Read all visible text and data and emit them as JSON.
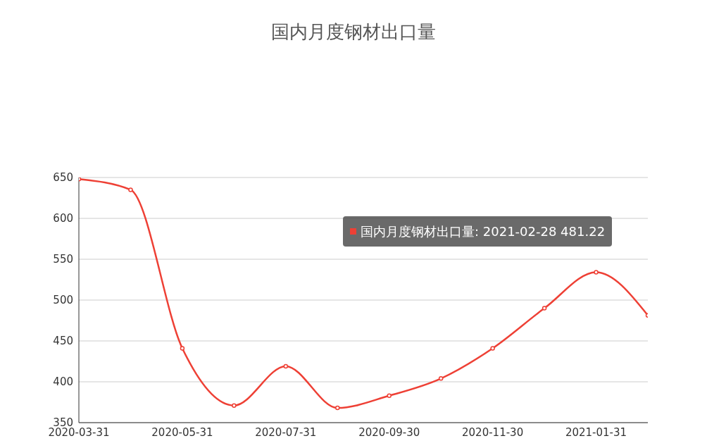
{
  "chart_data": {
    "type": "line",
    "title": "国内月度钢材出口量",
    "categories": [
      "2020-03-31",
      null,
      "2020-05-31",
      null,
      "2020-07-31",
      null,
      "2020-09-30",
      null,
      "2020-11-30",
      null,
      "2021-01-31",
      null
    ],
    "series": [
      {
        "color": "#ee4035",
        "values": [
          648,
          635,
          441,
          371,
          419,
          368,
          383,
          404,
          441,
          490,
          534,
          481.22
        ]
      }
    ],
    "ylim": [
      350,
      650
    ],
    "yticks": [
      350,
      400,
      450,
      500,
      550,
      600,
      650
    ],
    "grid": "y",
    "marker": "circle",
    "line_style": "solid",
    "annotations": [
      "国内月度钢材出口量: 2021-02-28 481.22"
    ]
  }
}
